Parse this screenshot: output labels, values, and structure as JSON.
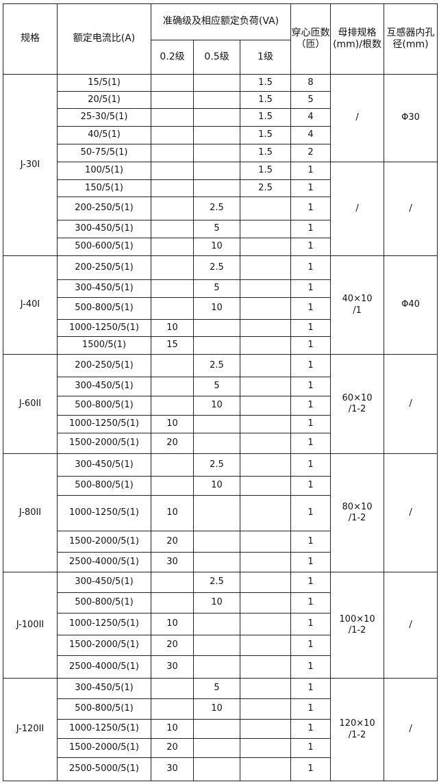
{
  "header": {
    "spec": "规格",
    "ratio": "额定电流比(A)",
    "accuracy": "准确级及相应额定负荷(VA)",
    "c02": "0.2级",
    "c05": "0.5级",
    "c1": "1级",
    "turns": "穿心匝数（匝）",
    "busbar": "母排规格(mm)/根数",
    "bore": "互感器内孔径(mm)"
  },
  "groups": [
    {
      "spec": "J-30I",
      "rows": [
        [
          "15/5(1)",
          "",
          "",
          "1.5",
          "8"
        ],
        [
          "20/5(1)",
          "",
          "",
          "1.5",
          "5"
        ],
        [
          "25-30/5(1)",
          "",
          "",
          "1.5",
          "4"
        ],
        [
          "40/5(1)",
          "",
          "",
          "1.5",
          "4"
        ],
        [
          "50-75/5(1)",
          "",
          "",
          "1.5",
          "2"
        ],
        [
          "100/5(1)",
          "",
          "",
          "1.5",
          "1"
        ],
        [
          "150/5(1)",
          "",
          "",
          "2.5",
          "1"
        ],
        [
          "200-250/5(1)",
          "",
          "2.5",
          "",
          "1"
        ],
        [
          "300-450/5(1)",
          "",
          "5",
          "",
          "1"
        ],
        [
          "500-600/5(1)",
          "",
          "10",
          "",
          "1"
        ]
      ],
      "merged": [
        {
          "span": 5,
          "busbar": "/",
          "bore": "Φ30"
        },
        {
          "span": 5,
          "busbar": "/",
          "bore": "/"
        }
      ]
    },
    {
      "spec": "J-40I",
      "rows": [
        [
          "200-250/5(1)",
          "",
          "2.5",
          "",
          "1"
        ],
        [
          "300-450/5(1)",
          "",
          "5",
          "",
          "1"
        ],
        [
          "500-800/5(1)",
          "",
          "10",
          "",
          "1"
        ],
        [
          "1000-1250/5(1)",
          "10",
          "",
          "",
          "1"
        ],
        [
          "1500/5(1)",
          "15",
          "",
          "",
          "1"
        ]
      ],
      "merged": [
        {
          "span": 5,
          "busbar": "40×10 /1",
          "bore": "Φ40"
        }
      ]
    },
    {
      "spec": "J-60II",
      "rows": [
        [
          "200-250/5(1)",
          "",
          "2.5",
          "",
          "1"
        ],
        [
          "300-450/5(1)",
          "",
          "5",
          "",
          "1"
        ],
        [
          "500-800/5(1)",
          "",
          "10",
          "",
          "1"
        ],
        [
          "1000-1250/5(1)",
          "10",
          "",
          "",
          "1"
        ],
        [
          "1500-2000/5(1)",
          "20",
          "",
          "",
          "1"
        ]
      ],
      "merged": [
        {
          "span": 5,
          "busbar": "60×10 /1-2",
          "bore": "/"
        }
      ]
    },
    {
      "spec": "J-80II",
      "rows": [
        [
          "300-450/5(1)",
          "",
          "2.5",
          "",
          "1"
        ],
        [
          "500-800/5(1)",
          "",
          "10",
          "",
          "1"
        ],
        [
          "1000-1250/5(1)",
          "10",
          "",
          "",
          "1"
        ],
        [
          "1500-2000/5(1)",
          "20",
          "",
          "",
          "1"
        ],
        [
          "2500-4000/5(1)",
          "30",
          "",
          "",
          "1"
        ]
      ],
      "merged": [
        {
          "span": 5,
          "busbar": "80×10 /1-2",
          "bore": "/"
        }
      ]
    },
    {
      "spec": "J-100II",
      "rows": [
        [
          "300-450/5(1)",
          "",
          "2.5",
          "",
          "1"
        ],
        [
          "500-800/5(1)",
          "",
          "10",
          "",
          "1"
        ],
        [
          "1000-1250/5(1)",
          "10",
          "",
          "",
          "1"
        ],
        [
          "1500-2000/5(1)",
          "20",
          "",
          "",
          "1"
        ],
        [
          "2500-4000/5(1)",
          "30",
          "",
          "",
          "1"
        ]
      ],
      "merged": [
        {
          "span": 5,
          "busbar": "100×10 /1-2",
          "bore": "/"
        }
      ]
    },
    {
      "spec": "J-120II",
      "rows": [
        [
          "300-450/5(1)",
          "",
          "5",
          "",
          "1"
        ],
        [
          "500-800/5(1)",
          "",
          "10",
          "",
          "1"
        ],
        [
          "1000-1250/5(1)",
          "10",
          "",
          "",
          "1"
        ],
        [
          "1500-2000/5(1)",
          "20",
          "",
          "",
          "1"
        ],
        [
          "2500-5000/5(1)",
          "30",
          "",
          "",
          "1"
        ]
      ],
      "merged": [
        {
          "span": 5,
          "busbar": "120×10 /1-2",
          "bore": "/"
        }
      ]
    }
  ]
}
